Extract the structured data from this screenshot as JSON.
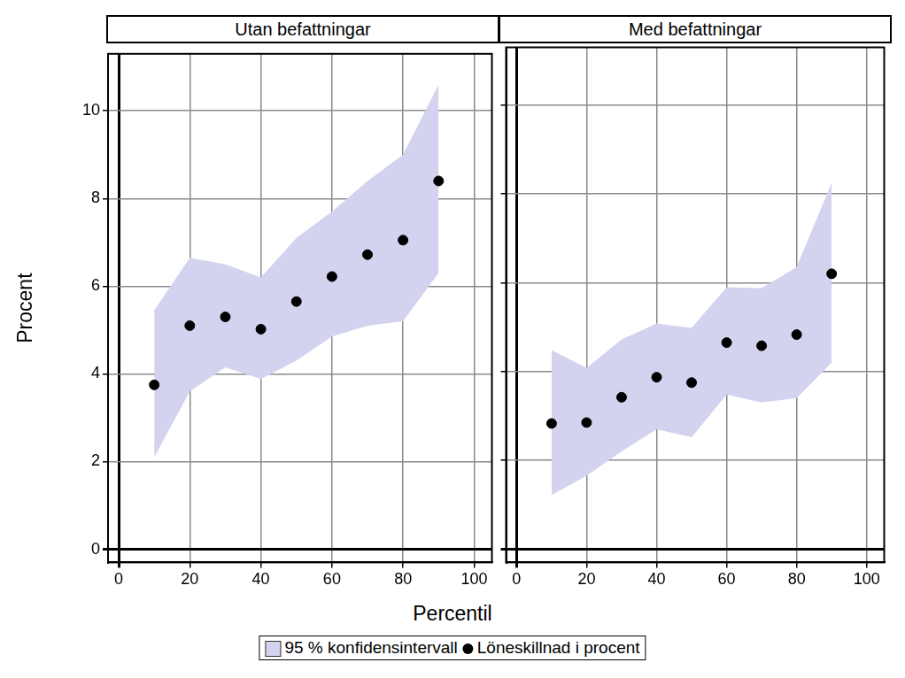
{
  "chart_data": {
    "type": "scatter",
    "xlabel": "Percentil",
    "ylabel": "Procent",
    "xlim": [
      -3,
      105
    ],
    "xticks": [
      0,
      20,
      40,
      60,
      80,
      100
    ],
    "ylim": [
      -0.3,
      11.3
    ],
    "yticks": [
      0,
      2,
      4,
      6,
      8,
      10
    ],
    "grid": true,
    "legend": "bottom",
    "panels": [
      {
        "title": "Utan befattningar",
        "x": [
          10,
          20,
          30,
          40,
          50,
          60,
          70,
          80,
          90
        ],
        "series": [
          {
            "name": "95 % konfidensintervall",
            "type": "area",
            "color": "#d3d3f0",
            "lower": [
              2.1,
              3.6,
              4.15,
              3.88,
              4.3,
              4.85,
              5.1,
              5.2,
              6.3
            ],
            "upper": [
              5.45,
              6.65,
              6.5,
              6.2,
              7.1,
              7.7,
              8.4,
              9.0,
              10.6
            ]
          },
          {
            "name": "Löneskillnad i procent",
            "type": "scatter",
            "color": "#000000",
            "marker": "circle",
            "values": [
              3.75,
              5.1,
              5.3,
              5.02,
              5.65,
              6.22,
              6.72,
              7.05,
              8.4
            ]
          }
        ]
      },
      {
        "title": "Med befattningar",
        "x": [
          10,
          20,
          30,
          40,
          50,
          60,
          70,
          80,
          90
        ],
        "series": [
          {
            "name": "95 % konfidensintervall",
            "type": "area",
            "color": "#d3d3f0",
            "lower": [
              1.22,
              1.65,
              2.2,
              2.7,
              2.52,
              3.48,
              3.3,
              3.4,
              4.2
            ],
            "upper": [
              4.48,
              4.08,
              4.72,
              5.08,
              4.98,
              5.9,
              5.88,
              6.35,
              8.25
            ]
          },
          {
            "name": "Löneskillnad i procent",
            "type": "scatter",
            "color": "#000000",
            "marker": "circle",
            "values": [
              2.83,
              2.85,
              3.42,
              3.87,
              3.75,
              4.65,
              4.58,
              4.83,
              6.2
            ]
          }
        ]
      }
    ]
  }
}
